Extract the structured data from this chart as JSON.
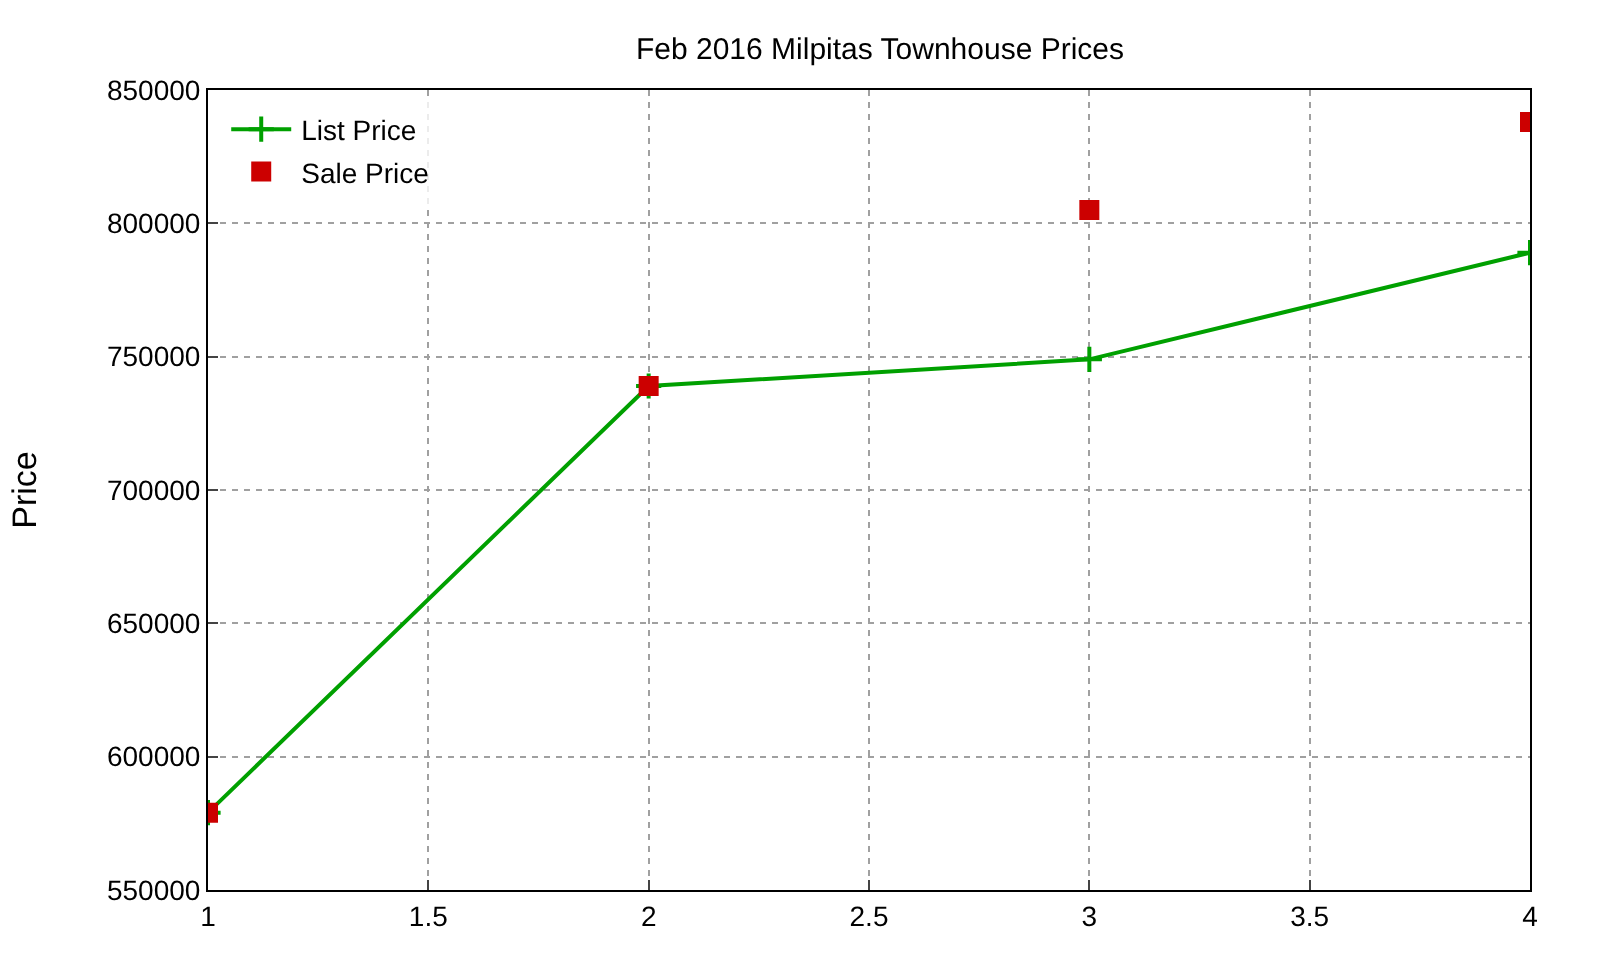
{
  "chart_data": {
    "type": "line",
    "title": "Feb 2016 Milpitas Townhouse Prices",
    "ylabel": "Price",
    "x": [
      1,
      2,
      3,
      4
    ],
    "series": [
      {
        "name": "List Price",
        "marker": "cross",
        "color": "#00a000",
        "values": [
          579000,
          739000,
          749000,
          789000
        ]
      },
      {
        "name": "Sale Price",
        "type": "scatter",
        "marker": "square",
        "color": "#cc0000",
        "values": [
          579000,
          739000,
          805000,
          838000
        ]
      }
    ],
    "xlim": [
      1,
      4
    ],
    "xticks": [
      1,
      1.5,
      2,
      2.5,
      3,
      3.5,
      4
    ],
    "ylim": [
      550000,
      850000
    ],
    "yticks": [
      550000,
      600000,
      650000,
      700000,
      750000,
      800000,
      850000
    ],
    "grid": true,
    "legend": "top left"
  }
}
